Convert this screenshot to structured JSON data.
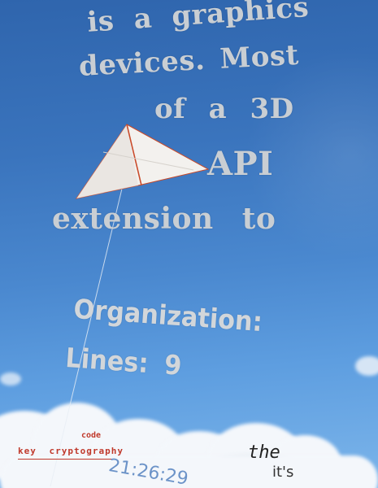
{
  "poem_lines": [
    "is a graphics",
    "devices. Most",
    "of a 3D",
    "API",
    "extension to"
  ],
  "organization_line": "Organization:",
  "lines_line": "Lines: 9",
  "code_label": "code",
  "crypto_label": "key cryptography",
  "time": "21:26:29",
  "the_word": "the",
  "its_word": "it's",
  "colors": {
    "sky": "#3a74bd",
    "poem_text": "#c9ced3",
    "red_text": "#c0392b",
    "time_text": "#6c93c8"
  },
  "icons": [
    "kite-image"
  ]
}
